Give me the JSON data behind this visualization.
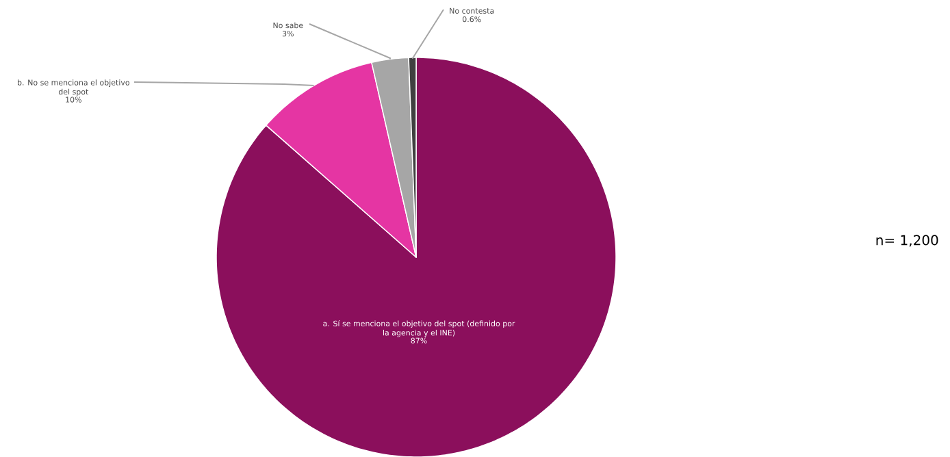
{
  "chart_data": {
    "type": "pie",
    "categories": [
      "a. Sí se  menciona el objetivo del spot (definido por la agencia y el INE)",
      "b. No se  menciona el objetivo del spot",
      "No sabe",
      "No contesta"
    ],
    "values": [
      87,
      10,
      3,
      0.6
    ],
    "value_labels": [
      "87%",
      "10%",
      "3%",
      "0.6%"
    ],
    "colors": [
      "#8b0f5c",
      "#e535a3",
      "#a6a6a6",
      "#404040"
    ],
    "annotations": [
      "n= 1,200"
    ]
  }
}
